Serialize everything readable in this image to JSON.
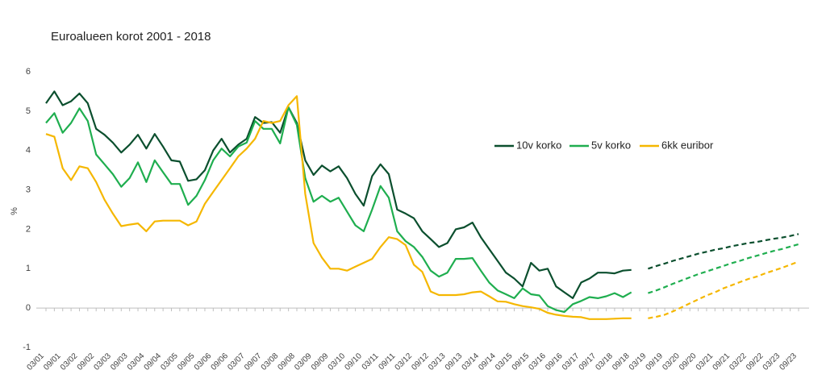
{
  "chart_data": {
    "type": "line",
    "title": "Euroalueen korot 2001 - 2018",
    "ylabel": "%",
    "categories": [
      "03/01",
      null,
      "09/01",
      null,
      "03/02",
      null,
      "09/02",
      null,
      "03/03",
      null,
      "09/03",
      null,
      "03/04",
      null,
      "09/04",
      null,
      "03/05",
      null,
      "09/05",
      null,
      "03/06",
      null,
      "09/06",
      null,
      "03/07",
      null,
      "09/07",
      null,
      "03/08",
      null,
      "09/08",
      null,
      "03/09",
      null,
      "09/09",
      null,
      "03/10",
      null,
      "09/10",
      null,
      "03/11",
      null,
      "09/11",
      null,
      "03/12",
      null,
      "09/12",
      null,
      "03/13",
      null,
      "09/13",
      null,
      "03/14",
      null,
      "09/14",
      null,
      "03/15",
      null,
      "09/15",
      null,
      "03/16",
      null,
      "09/16",
      null,
      "03/17",
      null,
      "09/17",
      null,
      "03/18",
      null,
      "09/18",
      null,
      "03/19",
      null,
      "09/19",
      null,
      "03/20",
      null,
      "09/20",
      null,
      "03/21",
      null,
      "09/21",
      null,
      "03/22",
      null,
      "09/22",
      null,
      "03/23",
      null,
      "09/23"
    ],
    "series": [
      {
        "name": "10v korko",
        "color": "#0b4f2e",
        "values": [
          5.2,
          5.5,
          5.15,
          5.25,
          5.45,
          5.2,
          4.55,
          4.4,
          4.2,
          3.95,
          4.15,
          4.4,
          4.05,
          4.42,
          4.1,
          3.75,
          3.72,
          3.23,
          3.27,
          3.5,
          4.0,
          4.3,
          3.95,
          4.15,
          4.3,
          4.85,
          4.7,
          4.72,
          4.45,
          5.1,
          4.7,
          3.75,
          3.38,
          3.62,
          3.47,
          3.6,
          3.3,
          2.9,
          2.6,
          3.35,
          3.65,
          3.4,
          2.5,
          2.4,
          2.28,
          1.95,
          1.75,
          1.55,
          1.65,
          2.0,
          2.05,
          2.17,
          1.8,
          1.5,
          1.2,
          0.9,
          0.75,
          0.55,
          1.15,
          0.95,
          1.0,
          0.55,
          0.4,
          0.25,
          0.65,
          0.75,
          0.9,
          0.9,
          0.88,
          0.95,
          0.97,
          null,
          null,
          null,
          null,
          null,
          null,
          null,
          null,
          null,
          null,
          null,
          null,
          null,
          null,
          null,
          null,
          null,
          null,
          null,
          null
        ],
        "forecast_values": [
          null,
          null,
          null,
          null,
          null,
          null,
          null,
          null,
          null,
          null,
          null,
          null,
          null,
          null,
          null,
          null,
          null,
          null,
          null,
          null,
          null,
          null,
          null,
          null,
          null,
          null,
          null,
          null,
          null,
          null,
          null,
          null,
          null,
          null,
          null,
          null,
          null,
          null,
          null,
          null,
          null,
          null,
          null,
          null,
          null,
          null,
          null,
          null,
          null,
          null,
          null,
          null,
          null,
          null,
          null,
          null,
          null,
          null,
          null,
          null,
          null,
          null,
          null,
          null,
          null,
          null,
          null,
          null,
          null,
          null,
          null,
          null,
          1.0,
          1.07,
          1.13,
          1.2,
          1.26,
          1.32,
          1.38,
          1.43,
          1.48,
          1.52,
          1.57,
          1.61,
          1.65,
          1.68,
          1.72,
          1.76,
          1.79,
          1.83,
          1.88
        ]
      },
      {
        "name": "5v korko",
        "color": "#1fae4f",
        "values": [
          4.7,
          4.95,
          4.45,
          4.7,
          5.07,
          4.75,
          3.9,
          3.65,
          3.4,
          3.08,
          3.3,
          3.7,
          3.2,
          3.75,
          3.45,
          3.15,
          3.15,
          2.62,
          2.85,
          3.25,
          3.75,
          4.05,
          3.85,
          4.1,
          4.2,
          4.75,
          4.55,
          4.55,
          4.18,
          5.1,
          4.65,
          3.3,
          2.7,
          2.85,
          2.7,
          2.8,
          2.45,
          2.1,
          1.95,
          2.5,
          3.1,
          2.8,
          1.95,
          1.7,
          1.55,
          1.3,
          0.95,
          0.8,
          0.9,
          1.25,
          1.25,
          1.27,
          0.95,
          0.65,
          0.45,
          0.35,
          0.25,
          0.5,
          0.35,
          0.32,
          0.05,
          -0.05,
          -0.1,
          0.1,
          0.18,
          0.28,
          0.25,
          0.3,
          0.38,
          0.28,
          0.4,
          null,
          null,
          null,
          null,
          null,
          null,
          null,
          null,
          null,
          null,
          null,
          null,
          null,
          null,
          null,
          null,
          null,
          null,
          null,
          null
        ],
        "forecast_values": [
          null,
          null,
          null,
          null,
          null,
          null,
          null,
          null,
          null,
          null,
          null,
          null,
          null,
          null,
          null,
          null,
          null,
          null,
          null,
          null,
          null,
          null,
          null,
          null,
          null,
          null,
          null,
          null,
          null,
          null,
          null,
          null,
          null,
          null,
          null,
          null,
          null,
          null,
          null,
          null,
          null,
          null,
          null,
          null,
          null,
          null,
          null,
          null,
          null,
          null,
          null,
          null,
          null,
          null,
          null,
          null,
          null,
          null,
          null,
          null,
          null,
          null,
          null,
          null,
          null,
          null,
          null,
          null,
          null,
          null,
          null,
          null,
          0.38,
          0.45,
          0.53,
          0.62,
          0.7,
          0.78,
          0.86,
          0.93,
          1.0,
          1.07,
          1.14,
          1.2,
          1.27,
          1.33,
          1.39,
          1.45,
          1.5,
          1.56,
          1.62
        ]
      },
      {
        "name": "6kk euribor",
        "color": "#f5b700",
        "values": [
          4.42,
          4.35,
          3.55,
          3.25,
          3.6,
          3.55,
          3.2,
          2.75,
          2.4,
          2.08,
          2.12,
          2.15,
          1.95,
          2.2,
          2.22,
          2.22,
          2.22,
          2.1,
          2.2,
          2.65,
          2.95,
          3.25,
          3.55,
          3.85,
          4.05,
          4.3,
          4.75,
          4.7,
          4.75,
          5.15,
          5.38,
          2.9,
          1.65,
          1.28,
          1.0,
          1.0,
          0.95,
          1.05,
          1.15,
          1.25,
          1.55,
          1.8,
          1.75,
          1.6,
          1.1,
          0.92,
          0.42,
          0.33,
          0.33,
          0.33,
          0.35,
          0.4,
          0.42,
          0.3,
          0.17,
          0.16,
          0.1,
          0.05,
          0.02,
          -0.02,
          -0.12,
          -0.17,
          -0.2,
          -0.22,
          -0.23,
          -0.28,
          -0.28,
          -0.28,
          -0.27,
          -0.26,
          -0.26,
          null,
          null,
          null,
          null,
          null,
          null,
          null,
          null,
          null,
          null,
          null,
          null,
          null,
          null,
          null,
          null,
          null,
          null,
          null,
          null
        ],
        "forecast_values": [
          null,
          null,
          null,
          null,
          null,
          null,
          null,
          null,
          null,
          null,
          null,
          null,
          null,
          null,
          null,
          null,
          null,
          null,
          null,
          null,
          null,
          null,
          null,
          null,
          null,
          null,
          null,
          null,
          null,
          null,
          null,
          null,
          null,
          null,
          null,
          null,
          null,
          null,
          null,
          null,
          null,
          null,
          null,
          null,
          null,
          null,
          null,
          null,
          null,
          null,
          null,
          null,
          null,
          null,
          null,
          null,
          null,
          null,
          null,
          null,
          null,
          null,
          null,
          null,
          null,
          null,
          null,
          null,
          null,
          null,
          null,
          null,
          -0.26,
          -0.22,
          -0.17,
          -0.08,
          0.02,
          0.12,
          0.22,
          0.32,
          0.4,
          0.5,
          0.58,
          0.66,
          0.74,
          0.8,
          0.88,
          0.95,
          1.02,
          1.1,
          1.18
        ]
      }
    ],
    "ylim": [
      -1,
      6
    ],
    "yticks": [
      -1,
      0,
      1,
      2,
      3,
      4,
      5,
      6
    ],
    "grid": false
  }
}
